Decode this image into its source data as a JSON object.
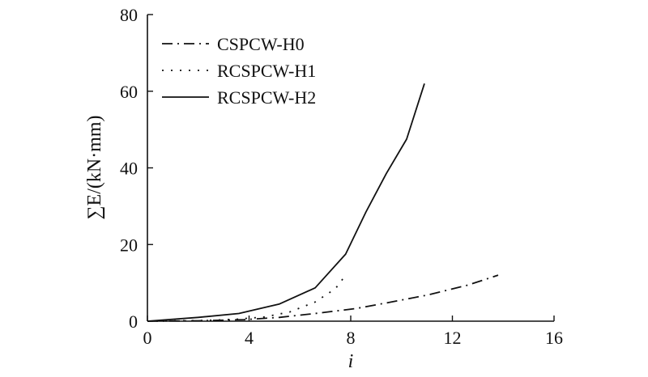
{
  "chart_data": {
    "type": "line",
    "xlabel": "i",
    "ylabel": "∑E/(kN·mm)",
    "xlim": [
      0,
      16
    ],
    "ylim": [
      0,
      80
    ],
    "xticks": [
      0,
      4,
      8,
      12,
      16
    ],
    "yticks": [
      0,
      20,
      40,
      60,
      80
    ],
    "grid": false,
    "legend_position": "top-left",
    "series": [
      {
        "name": "CSPCW-H0",
        "style": "dashdot",
        "x": [
          0,
          2,
          3.8,
          5.2,
          6.6,
          8.2,
          9.6,
          11,
          12.6,
          13.8
        ],
        "y": [
          0,
          0.1,
          0.4,
          1,
          2,
          3.3,
          5,
          6.8,
          9.4,
          12
        ]
      },
      {
        "name": "RCSPCW-H1",
        "style": "dotted",
        "x": [
          0,
          2.3,
          3.5,
          4.6,
          5.6,
          6.6,
          7.4,
          7.8
        ],
        "y": [
          0,
          0.2,
          0.5,
          1.1,
          2.4,
          5,
          8.5,
          12
        ]
      },
      {
        "name": "RCSPCW-H2",
        "style": "solid",
        "x": [
          0,
          2,
          3.6,
          5.2,
          6.6,
          7.8,
          8.6,
          9.4,
          10.2,
          10.9
        ],
        "y": [
          0,
          1,
          2,
          4.5,
          8.7,
          17.5,
          28.5,
          38.5,
          47.5,
          62
        ]
      }
    ]
  }
}
